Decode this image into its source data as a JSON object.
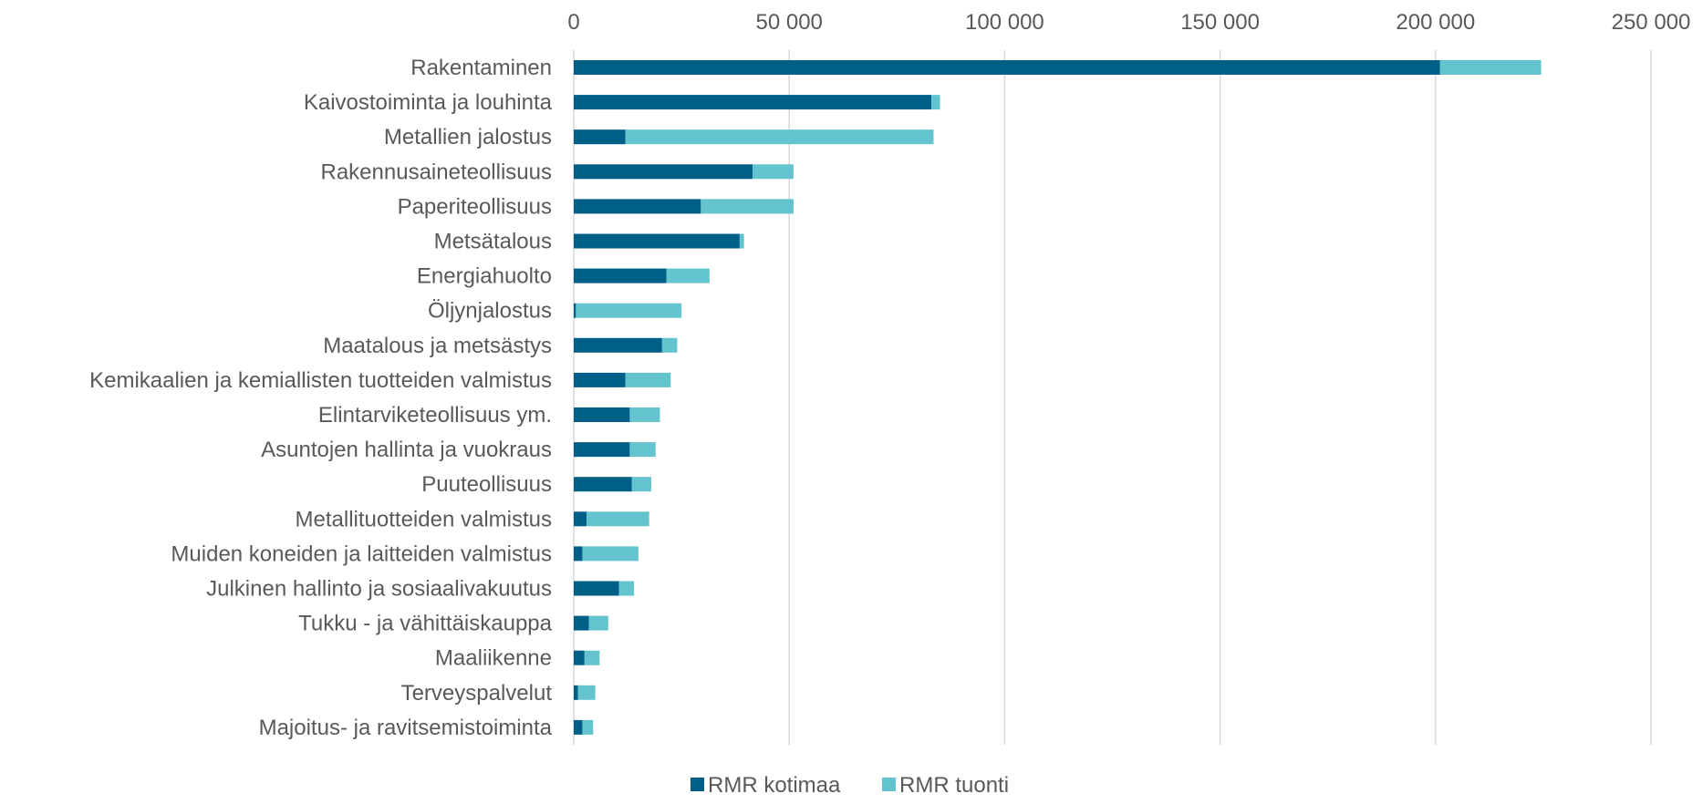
{
  "chart_data": {
    "type": "bar",
    "orientation": "horizontal",
    "stacked": true,
    "title": "",
    "xlabel": "",
    "ylabel": "",
    "xlim": [
      0,
      250000
    ],
    "x_ticks": [
      0,
      50000,
      100000,
      150000,
      200000,
      250000
    ],
    "x_tick_labels": [
      "0",
      "50 000",
      "100 000",
      "150 000",
      "200 000",
      "250 000"
    ],
    "x_axis_position": "top",
    "grid": true,
    "legend_position": "bottom",
    "categories": [
      "Rakentaminen",
      "Kaivostoiminta ja louhinta",
      "Metallien jalostus",
      "Rakennusaineteollisuus",
      "Paperiteollisuus",
      "Metsätalous",
      "Energiahuolto",
      "Öljynjalostus",
      "Maatalous ja metsästys",
      "Kemikaalien ja kemiallisten tuotteiden valmistus",
      "Elintarviketeollisuus ym.",
      "Asuntojen hallinta ja vuokraus",
      "Puuteollisuus",
      "Metallituotteiden valmistus",
      "Muiden koneiden ja laitteiden valmistus",
      "Julkinen hallinto ja sosiaalivakuutus",
      "Tukku - ja vähittäiskauppa",
      "Maaliikenne",
      "Terveyspalvelut",
      "Majoitus- ja ravitsemistoiminta"
    ],
    "series": [
      {
        "name": "RMR kotimaa",
        "color": "#005f87",
        "values": [
          201000,
          83000,
          12000,
          41500,
          29500,
          38500,
          21500,
          500,
          20500,
          12000,
          13000,
          13000,
          13500,
          3000,
          2000,
          10500,
          3500,
          2500,
          1000,
          2000
        ]
      },
      {
        "name": "RMR tuonti",
        "color": "#63c3cf",
        "values": [
          23500,
          2000,
          71500,
          9500,
          21500,
          1000,
          10000,
          24500,
          3500,
          10500,
          7000,
          6000,
          4500,
          14500,
          13000,
          3500,
          4500,
          3500,
          4000,
          2500
        ]
      }
    ]
  }
}
